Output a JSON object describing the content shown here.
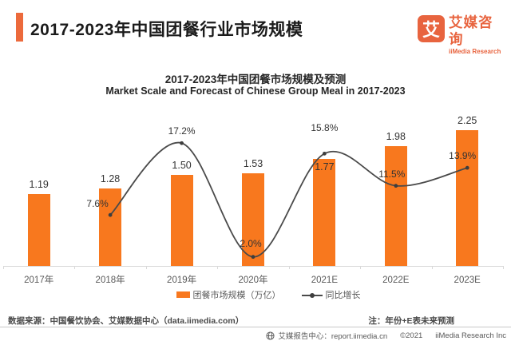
{
  "header": {
    "title": "2017-2023年中国团餐行业市场规模"
  },
  "logo": {
    "mark": "艾",
    "name_cn": "艾媒咨询",
    "name_en": "iiMedia Research",
    "color": "#E8643F"
  },
  "chart": {
    "title": "2017-2023年中国团餐市场规模及预测",
    "subtitle": "Market Scale and Forecast of Chinese Group Meal in 2017-2023",
    "legend": [
      {
        "label": "团餐市场规模（万亿）",
        "marker": "bar-swatch"
      },
      {
        "label": "同比增长",
        "marker": "line-dot"
      }
    ]
  },
  "chart_data": {
    "type": "bar+line",
    "categories": [
      "2017年",
      "2018年",
      "2019年",
      "2020年",
      "2021E",
      "2022E",
      "2023E"
    ],
    "series": [
      {
        "name": "团餐市场规模（万亿）",
        "type": "bar",
        "color": "#F8781E",
        "values": [
          1.19,
          1.28,
          1.5,
          1.53,
          1.77,
          1.98,
          2.25
        ],
        "value_labels": [
          "1.19",
          "1.28",
          "1.50",
          "1.53",
          "1.77",
          "1.98",
          "2.25"
        ]
      },
      {
        "name": "同比增长",
        "type": "line",
        "color": "#4A4A4A",
        "dot_color": "#3E3E3E",
        "unit": "%",
        "values": [
          null,
          7.6,
          17.2,
          2.0,
          15.8,
          11.5,
          13.9
        ],
        "value_labels": [
          "",
          "7.6%",
          "17.2%",
          "2.0%",
          "15.8%",
          "11.5%",
          "13.9%"
        ]
      }
    ],
    "title": "2017-2023年中国团餐市场规模及预测",
    "subtitle": "Market Scale and Forecast of Chinese Group Meal in 2017-2023",
    "xlabel": "",
    "ylabel": "",
    "grid": false,
    "y_axis_visible": false,
    "legend_position": "bottom"
  },
  "footer": {
    "source": "数据来源：中国餐饮协会、艾媒数据中心（data.iimedia.com）",
    "note": "注：年份+E表未来预测",
    "credit_center": "艾媒报告中心：report.iimedia.cn",
    "credit_year": "©2021",
    "credit_company": "iiMedia Research Inc"
  },
  "colors": {
    "bar": "#F8781E",
    "line": "#4A4A4A",
    "accent": "#EC6A3C",
    "axis": "#D9D9D9"
  }
}
